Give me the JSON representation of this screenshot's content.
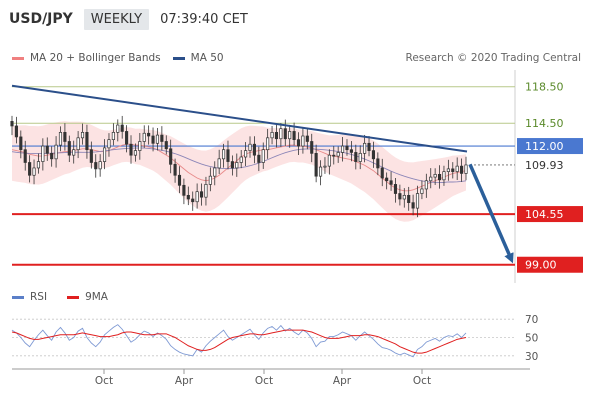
{
  "header": {
    "symbol": "USD/JPY",
    "timeframe": "WEEKLY",
    "time": "07:39:40 CET"
  },
  "legend": {
    "items": [
      {
        "label": "MA 20 + Bollinger Bands",
        "color": "#f08080"
      },
      {
        "label": "MA 50",
        "color": "#2b4f8a"
      }
    ]
  },
  "credit": "Research © 2020 Trading Central",
  "chart_data": {
    "type": "candlestick",
    "price_range": [
      97,
      120
    ],
    "levels": [
      {
        "value": 118.5,
        "label": "118.50",
        "color": "#5a8a2a",
        "style": "thin-olive"
      },
      {
        "value": 114.5,
        "label": "114.50",
        "color": "#5a8a2a",
        "style": "thin-olive"
      },
      {
        "value": 112.0,
        "label": "112.00",
        "color": "#4a78d0",
        "style": "resistance"
      },
      {
        "value": 109.93,
        "label": "109.93",
        "color": "#333333",
        "style": "last-price"
      },
      {
        "value": 104.55,
        "label": "104.55",
        "color": "#e02020",
        "style": "support"
      },
      {
        "value": 99.0,
        "label": "99.00",
        "color": "#e02020",
        "style": "support"
      }
    ],
    "trendline": {
      "from": 118.6,
      "to": 111.4
    },
    "forecast_arrow": {
      "from": 110.0,
      "to": 99.0
    },
    "closes": [
      114.2,
      113.0,
      111.6,
      110.2,
      108.8,
      109.6,
      110.3,
      112.0,
      111.2,
      110.6,
      112.1,
      113.5,
      112.5,
      111.0,
      111.6,
      112.9,
      113.5,
      111.6,
      110.2,
      109.5,
      110.3,
      111.8,
      112.7,
      113.5,
      114.3,
      113.6,
      112.2,
      111.0,
      111.5,
      112.5,
      113.4,
      113.1,
      112.3,
      113.2,
      112.5,
      111.7,
      110.0,
      108.8,
      107.7,
      106.6,
      106.2,
      105.9,
      107.0,
      106.4,
      107.8,
      108.7,
      109.6,
      110.6,
      111.6,
      110.3,
      109.6,
      110.2,
      110.8,
      111.5,
      112.2,
      111.0,
      110.2,
      111.6,
      112.9,
      113.5,
      112.8,
      113.9,
      112.8,
      113.6,
      112.7,
      112.0,
      113.1,
      112.5,
      111.2,
      108.7,
      109.7,
      109.8,
      111.0,
      110.9,
      111.3,
      112.0,
      111.6,
      111.3,
      110.3,
      111.2,
      112.3,
      111.5,
      110.6,
      109.6,
      108.5,
      108.2,
      107.8,
      106.8,
      106.2,
      106.6,
      105.8,
      105.2,
      106.8,
      107.3,
      108.2,
      108.6,
      108.9,
      108.3,
      109.2,
      109.5,
      109.2,
      109.8,
      109.0,
      109.93
    ],
    "ma20": [
      111.6,
      111.5,
      111.4,
      111.3,
      111.1,
      111.0,
      110.9,
      110.9,
      111.0,
      111.1,
      111.2,
      111.3,
      111.4,
      111.4,
      111.5,
      111.6,
      111.7,
      111.7,
      111.6,
      111.5,
      111.4,
      111.4,
      111.5,
      111.7,
      111.9,
      112.1,
      112.2,
      112.2,
      112.1,
      112.1,
      112.0,
      111.9,
      111.8,
      111.6,
      111.3,
      111.0,
      110.7,
      110.3,
      109.9,
      109.5,
      109.1,
      108.8,
      108.5,
      108.3,
      108.2,
      108.3,
      108.5,
      108.8,
      109.2,
      109.6,
      110.0,
      110.4,
      110.8,
      111.1,
      111.3,
      111.4,
      111.5,
      111.6,
      111.6,
      111.7,
      111.8,
      111.9,
      112.0,
      112.1,
      112.1,
      112.0,
      112.0,
      111.9,
      111.8,
      111.6,
      111.4,
      111.2,
      111.0,
      110.9,
      110.8,
      110.7,
      110.6,
      110.5,
      110.3,
      110.1,
      109.9,
      109.6,
      109.3,
      108.9,
      108.5,
      108.1,
      107.7,
      107.4,
      107.2,
      107.1,
      107.1,
      107.2,
      107.4,
      107.6,
      107.8,
      108.0,
      108.2,
      108.4,
      108.6,
      108.8,
      109.0,
      109.1,
      109.2,
      109.3
    ],
    "rsi": {
      "ticks": [
        "70",
        "50",
        "30"
      ],
      "range": [
        20,
        80
      ],
      "values": [
        58,
        55,
        50,
        44,
        40,
        47,
        53,
        58,
        52,
        47,
        56,
        61,
        55,
        47,
        50,
        57,
        60,
        50,
        44,
        40,
        45,
        53,
        57,
        61,
        64,
        59,
        52,
        45,
        48,
        53,
        57,
        55,
        51,
        55,
        52,
        48,
        41,
        37,
        34,
        32,
        31,
        30,
        37,
        34,
        41,
        46,
        50,
        54,
        58,
        51,
        47,
        50,
        53,
        56,
        59,
        53,
        48,
        55,
        60,
        62,
        58,
        63,
        57,
        60,
        56,
        53,
        58,
        55,
        49,
        40,
        45,
        46,
        51,
        51,
        53,
        56,
        54,
        52,
        47,
        52,
        56,
        52,
        48,
        43,
        39,
        38,
        36,
        33,
        31,
        33,
        31,
        29,
        37,
        40,
        45,
        47,
        49,
        46,
        50,
        52,
        51,
        54,
        50,
        55
      ],
      "ma9": [
        56,
        55,
        53,
        51,
        49,
        48,
        48,
        49,
        50,
        51,
        52,
        53,
        53,
        53,
        53,
        54,
        55,
        54,
        53,
        52,
        51,
        51,
        51,
        52,
        53,
        55,
        56,
        56,
        55,
        54,
        53,
        53,
        53,
        54,
        54,
        54,
        52,
        50,
        47,
        44,
        41,
        39,
        37,
        36,
        36,
        37,
        39,
        42,
        45,
        48,
        50,
        51,
        52,
        53,
        54,
        54,
        53,
        53,
        54,
        55,
        56,
        57,
        58,
        58,
        58,
        58,
        58,
        57,
        56,
        54,
        52,
        50,
        49,
        49,
        49,
        50,
        51,
        52,
        52,
        52,
        53,
        53,
        52,
        51,
        49,
        47,
        45,
        43,
        40,
        38,
        36,
        34,
        33,
        33,
        34,
        36,
        38,
        40,
        42,
        44,
        46,
        48,
        49,
        50
      ],
      "legend": [
        {
          "label": "RSI",
          "color": "#5b7fc8"
        },
        {
          "label": "9MA",
          "color": "#e02020"
        }
      ]
    },
    "x_ticks": [
      "Oct",
      "Apr",
      "Oct",
      "Apr",
      "Oct"
    ]
  }
}
